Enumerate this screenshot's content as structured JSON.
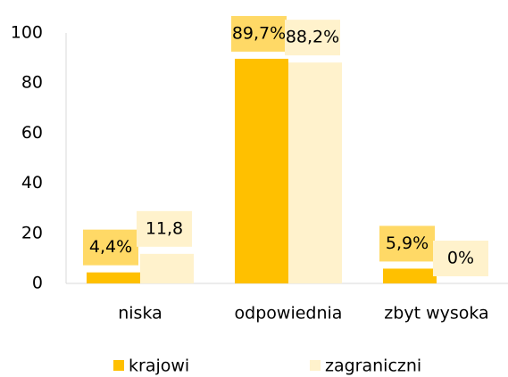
{
  "chart_data": {
    "type": "bar",
    "categories": [
      "niska",
      "odpowiednia",
      "zbyt wysoka"
    ],
    "series": [
      {
        "name": "krajowi",
        "color": "#FFC000",
        "label_color": "#FFD966",
        "values": [
          4.4,
          89.7,
          5.9
        ],
        "value_labels": [
          "4,4%",
          "89,7%",
          "5,9%"
        ]
      },
      {
        "name": "zagraniczni",
        "color": "#FFF2CC",
        "label_color": "#FFF2CC",
        "values": [
          11.8,
          88.2,
          0
        ],
        "value_labels": [
          "11,8",
          "88,2%",
          "0%"
        ]
      }
    ],
    "ylim": [
      0,
      100
    ],
    "yticks": [
      0,
      20,
      40,
      60,
      80,
      100
    ],
    "grid": false
  }
}
